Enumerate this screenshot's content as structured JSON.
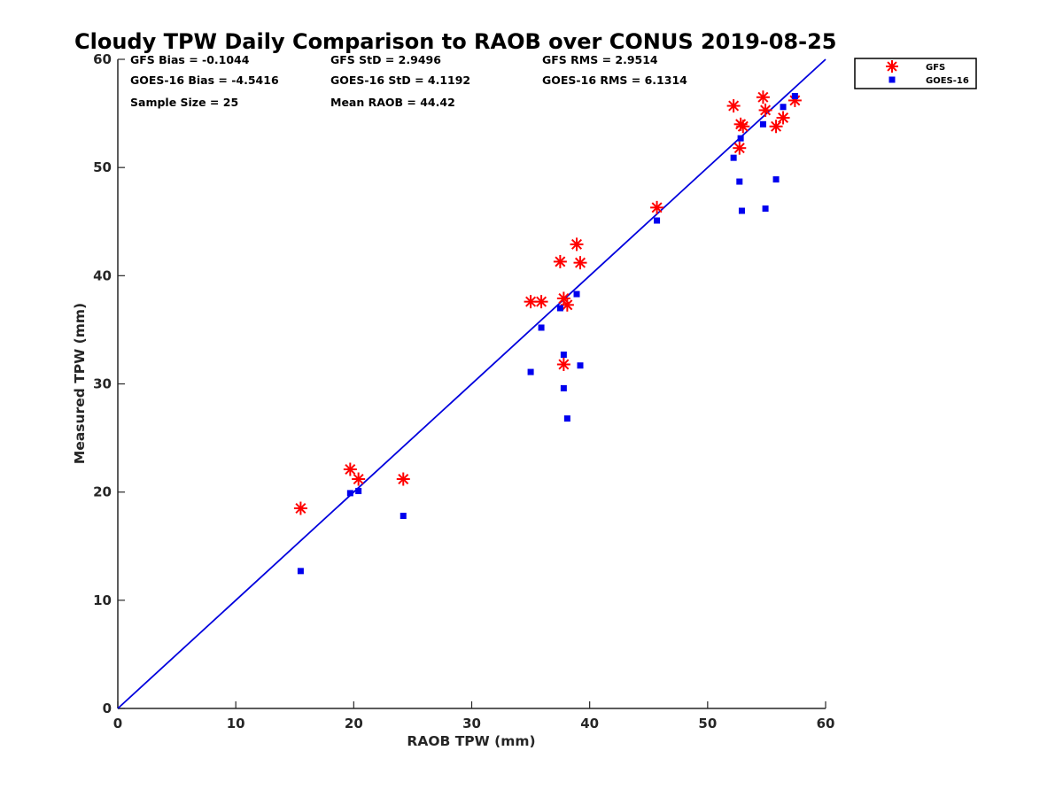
{
  "chart_data": {
    "type": "scatter",
    "title": "Cloudy TPW Daily Comparison to RAOB over CONUS 2019-08-25",
    "xlabel": "RAOB TPW (mm)",
    "ylabel": "Measured TPW (mm)",
    "xlim": [
      0,
      60
    ],
    "ylim": [
      0,
      60
    ],
    "xticks": [
      "0",
      "10",
      "20",
      "30",
      "40",
      "50",
      "60"
    ],
    "yticks": [
      "0",
      "10",
      "20",
      "30",
      "40",
      "50",
      "60"
    ],
    "grid": false,
    "legend_position": "outside-top-right",
    "reference_line": {
      "from": [
        0,
        0
      ],
      "to": [
        60,
        60
      ],
      "color": "#0000dd"
    },
    "stats": {
      "row1": [
        "GFS Bias = -0.1044",
        "GFS StD = 2.9496",
        "GFS RMS = 2.9514"
      ],
      "row2": [
        "GOES-16 Bias = -4.5416",
        "GOES-16 StD = 4.1192",
        "GOES-16 RMS = 6.1314"
      ],
      "row3": [
        "Sample Size = 25",
        "Mean RAOB = 44.42"
      ]
    },
    "series": [
      {
        "name": "GFS",
        "marker": "asterisk",
        "color": "#ff0000",
        "points": [
          [
            15.5,
            18.5
          ],
          [
            19.7,
            22.1
          ],
          [
            20.4,
            21.2
          ],
          [
            24.2,
            21.2
          ],
          [
            35.0,
            37.6
          ],
          [
            35.9,
            37.6
          ],
          [
            37.5,
            41.3
          ],
          [
            37.8,
            37.9
          ],
          [
            38.1,
            37.3
          ],
          [
            37.8,
            31.8
          ],
          [
            38.9,
            42.9
          ],
          [
            39.2,
            41.2
          ],
          [
            45.7,
            46.3
          ],
          [
            52.2,
            55.7
          ],
          [
            52.7,
            51.8
          ],
          [
            52.8,
            54.0
          ],
          [
            53.0,
            53.8
          ],
          [
            54.7,
            56.5
          ],
          [
            54.9,
            55.3
          ],
          [
            55.8,
            53.8
          ],
          [
            56.4,
            54.6
          ],
          [
            57.4,
            56.2
          ]
        ]
      },
      {
        "name": "GOES-16",
        "marker": "square",
        "color": "#0000ee",
        "points": [
          [
            15.5,
            12.7
          ],
          [
            19.7,
            19.9
          ],
          [
            20.4,
            20.1
          ],
          [
            24.2,
            17.8
          ],
          [
            35.0,
            31.1
          ],
          [
            35.9,
            35.2
          ],
          [
            37.5,
            37.0
          ],
          [
            37.8,
            32.7
          ],
          [
            37.8,
            29.6
          ],
          [
            38.1,
            26.8
          ],
          [
            38.9,
            38.3
          ],
          [
            39.2,
            31.7
          ],
          [
            45.7,
            45.1
          ],
          [
            52.2,
            50.9
          ],
          [
            52.7,
            48.7
          ],
          [
            52.8,
            52.7
          ],
          [
            52.9,
            46.0
          ],
          [
            54.7,
            54.0
          ],
          [
            54.9,
            46.2
          ],
          [
            55.8,
            48.9
          ],
          [
            56.4,
            55.6
          ],
          [
            57.4,
            56.6
          ]
        ]
      }
    ]
  }
}
